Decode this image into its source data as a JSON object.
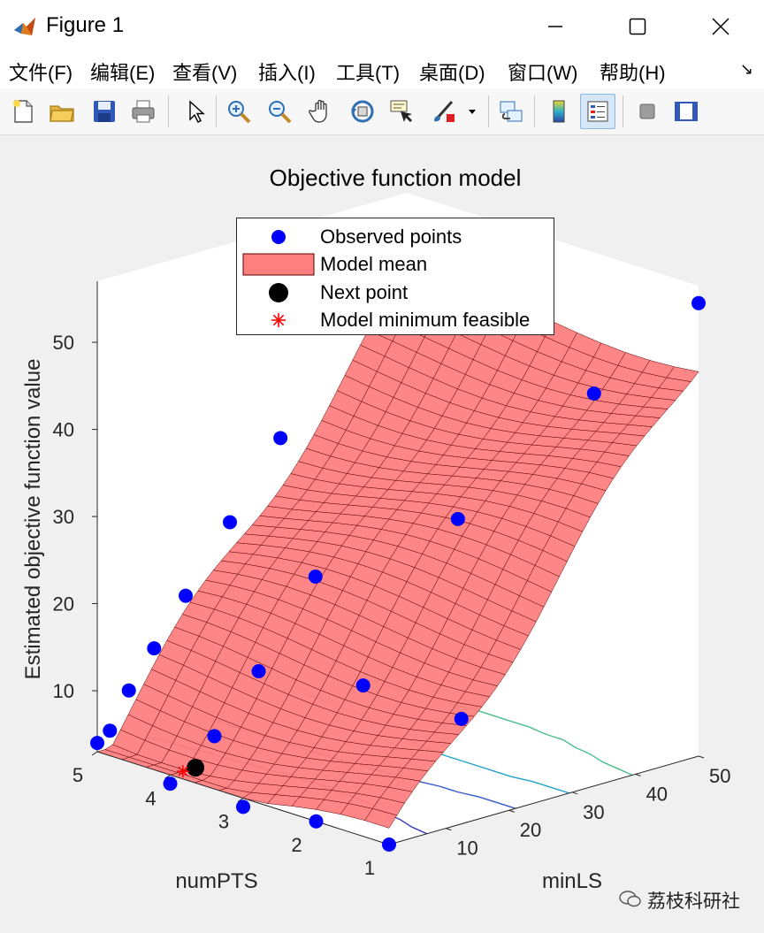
{
  "window": {
    "title": "Figure 1",
    "controls": {
      "minimize": "—",
      "maximize": "☐",
      "close": "✕"
    }
  },
  "menu": {
    "items": [
      "文件(F)",
      "编辑(E)",
      "查看(V)",
      "插入(I)",
      "工具(T)",
      "桌面(D)",
      "窗口(W)",
      "帮助(H)"
    ],
    "overflow_arrow": "↘"
  },
  "toolbar": {
    "buttons": [
      "new-figure",
      "open-file",
      "save",
      "print",
      "pointer",
      "zoom-in",
      "zoom-out",
      "pan",
      "rotate-3d",
      "data-cursor",
      "brush",
      "link-plot",
      "colorbar",
      "legend",
      "hide-plot-tools",
      "show-plot-tools"
    ]
  },
  "watermark": {
    "text": "荔枝科研社"
  },
  "chart_data": {
    "type": "surface3d",
    "title": "Objective function model",
    "xlabel": "minLS",
    "ylabel": "numPTS",
    "zlabel": "Estimated objective function value",
    "xlim": [
      1,
      50
    ],
    "ylim": [
      1,
      5
    ],
    "zlim": [
      3,
      57
    ],
    "xticks": [
      "10",
      "20",
      "30",
      "40",
      "50"
    ],
    "yticks": [
      "1",
      "2",
      "3",
      "4",
      "5"
    ],
    "zticks": [
      "10",
      "20",
      "30",
      "40",
      "50"
    ],
    "colors": {
      "surface_fill": "#ff7f7f",
      "surface_edge": "#5a0000",
      "observed": "#0000ff",
      "next_point": "#000000",
      "model_min": "#ff0000",
      "contour_low": "#3b3fbf",
      "contour_mid": "#21a3c8",
      "contour_high": "#d6c829"
    },
    "legend": [
      {
        "label": "Observed points",
        "marker": "dot",
        "color": "#0000ff"
      },
      {
        "label": "Model mean",
        "marker": "patch",
        "color": "#ff7f7f"
      },
      {
        "label": "Next point",
        "marker": "dot",
        "color": "#000000"
      },
      {
        "label": "Model minimum feasible",
        "marker": "star",
        "color": "#ff0000"
      }
    ],
    "observed_points": [
      {
        "minLS": 1,
        "numPTS": 5,
        "value": 4
      },
      {
        "minLS": 1,
        "numPTS": 4,
        "value": 2
      },
      {
        "minLS": 1,
        "numPTS": 3,
        "value": 2
      },
      {
        "minLS": 1,
        "numPTS": 2,
        "value": 3
      },
      {
        "minLS": 1,
        "numPTS": 1,
        "value": 3
      },
      {
        "minLS": 3,
        "numPTS": 5,
        "value": 5
      },
      {
        "minLS": 6,
        "numPTS": 5,
        "value": 9
      },
      {
        "minLS": 10,
        "numPTS": 5,
        "value": 13
      },
      {
        "minLS": 15,
        "numPTS": 5,
        "value": 18
      },
      {
        "minLS": 22,
        "numPTS": 5,
        "value": 25
      },
      {
        "minLS": 30,
        "numPTS": 5,
        "value": 33
      },
      {
        "minLS": 8,
        "numPTS": 4,
        "value": 6
      },
      {
        "minLS": 15,
        "numPTS": 4,
        "value": 12
      },
      {
        "minLS": 24,
        "numPTS": 4,
        "value": 21
      },
      {
        "minLS": 35,
        "numPTS": 3,
        "value": 28
      },
      {
        "minLS": 20,
        "numPTS": 3,
        "value": 12
      },
      {
        "minLS": 24,
        "numPTS": 2,
        "value": 10
      },
      {
        "minLS": 45,
        "numPTS": 2,
        "value": 43
      },
      {
        "minLS": 50,
        "numPTS": 1,
        "value": 55
      }
    ],
    "next_point": {
      "minLS": 5,
      "numPTS": 4,
      "value": 3
    },
    "model_minimum_feasible": {
      "minLS": 3,
      "numPTS": 4,
      "value": 3
    },
    "surface_grid": {
      "minLS_steps": 40,
      "numPTS_steps": 4
    },
    "contours": [
      {
        "level": 10,
        "color": "#3b3fbf"
      },
      {
        "level": 20,
        "color": "#3558c9"
      },
      {
        "level": 30,
        "color": "#21a3c8"
      },
      {
        "level": 40,
        "color": "#4bbf8a"
      },
      {
        "level": 50,
        "color": "#d6c829"
      }
    ]
  }
}
